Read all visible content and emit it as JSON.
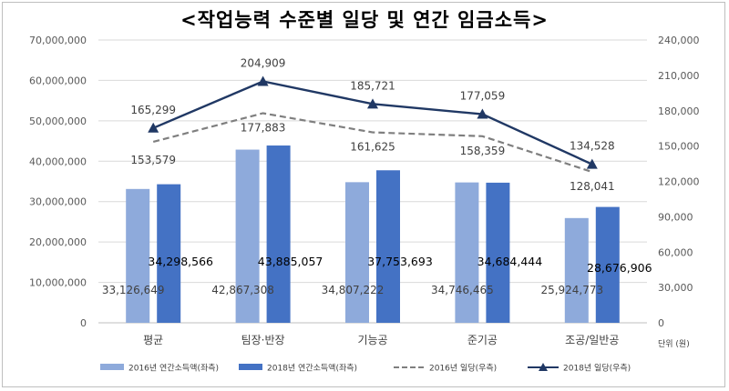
{
  "chart_data": {
    "type": "bar",
    "title": "<작업능력 수준별 일당 및 연간 임금소득>",
    "categories": [
      "평균",
      "팀장·반장",
      "기능공",
      "준기공",
      "조공/일반공"
    ],
    "series": [
      {
        "name": "2016년 연간소득액(좌측)",
        "type": "bar",
        "axis": "left",
        "color": "#8eaadb",
        "values": [
          33126649,
          42867308,
          34807222,
          34746465,
          25924773
        ],
        "labels": [
          "33,126,649",
          "42,867,308",
          "34,807,222",
          "34,746,465",
          "25,924,773"
        ]
      },
      {
        "name": "2018년 연간소득액(좌측)",
        "type": "bar",
        "axis": "left",
        "color": "#4472c4",
        "values": [
          34298566,
          43885057,
          37753693,
          34684444,
          28676906
        ],
        "labels": [
          "34,298,566",
          "43,885,057",
          "37,753,693",
          "34,684,444",
          "28,676,906"
        ]
      },
      {
        "name": "2016년 일당(우측)",
        "type": "line",
        "style": "dashed",
        "axis": "right",
        "color": "#7f7f7f",
        "values": [
          153579,
          177883,
          161625,
          158359,
          128041
        ],
        "labels": [
          "153,579",
          "177,883",
          "161,625",
          "158,359",
          "128,041"
        ]
      },
      {
        "name": "2018년 일당(우측)",
        "type": "line",
        "marker": "triangle",
        "axis": "right",
        "color": "#203864",
        "values": [
          165299,
          204909,
          185721,
          177059,
          134528
        ],
        "labels": [
          "165,299",
          "204,909",
          "185,721",
          "177,059",
          "134,528"
        ]
      }
    ],
    "y_left": {
      "range": [
        0,
        70000000
      ],
      "ticks": [
        "0",
        "10,000,000",
        "20,000,000",
        "30,000,000",
        "40,000,000",
        "50,000,000",
        "60,000,000",
        "70,000,000"
      ]
    },
    "y_right": {
      "range": [
        0,
        240000
      ],
      "ticks": [
        "0",
        "30,000",
        "60,000",
        "90,000",
        "120,000",
        "150,000",
        "180,000",
        "210,000",
        "240,000"
      ]
    },
    "unit_label": "단위 (원)",
    "grid": true,
    "legend": "bottom"
  }
}
